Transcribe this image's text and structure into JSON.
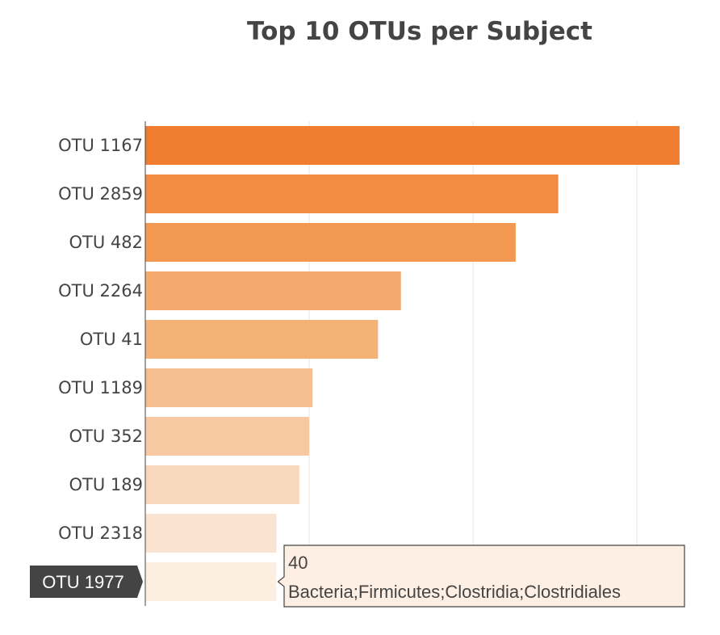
{
  "chart_data": {
    "type": "bar",
    "orientation": "horizontal",
    "title": "Top 10 OTUs per Subject",
    "xlabel": "",
    "ylabel": "",
    "categories": [
      "OTU 1167",
      "OTU 2859",
      "OTU 482",
      "OTU 2264",
      "OTU 41",
      "OTU 1189",
      "OTU 352",
      "OTU 189",
      "OTU 2318",
      "OTU 1977"
    ],
    "values": [
      163,
      126,
      113,
      78,
      71,
      51,
      50,
      47,
      40,
      40
    ],
    "xlim": [
      0,
      165
    ],
    "grid": true,
    "colors": [
      "#f07c30",
      "#f18c42",
      "#f29850",
      "#f4aa6c",
      "#f5b276",
      "#f5be8e",
      "#f6c9a2",
      "#f8d8bc",
      "#fbe3d2",
      "#fcefe2"
    ],
    "hover": {
      "category": "OTU 1977",
      "value": "40",
      "text": "Bacteria;Firmicutes;Clostridia;Clostridiales"
    }
  },
  "colors": {
    "text": "#444444",
    "grid": "#e6e6e6",
    "axis": "#444444",
    "hover_label_bg": "#444444",
    "tooltip_bg": "#fdefe3"
  }
}
